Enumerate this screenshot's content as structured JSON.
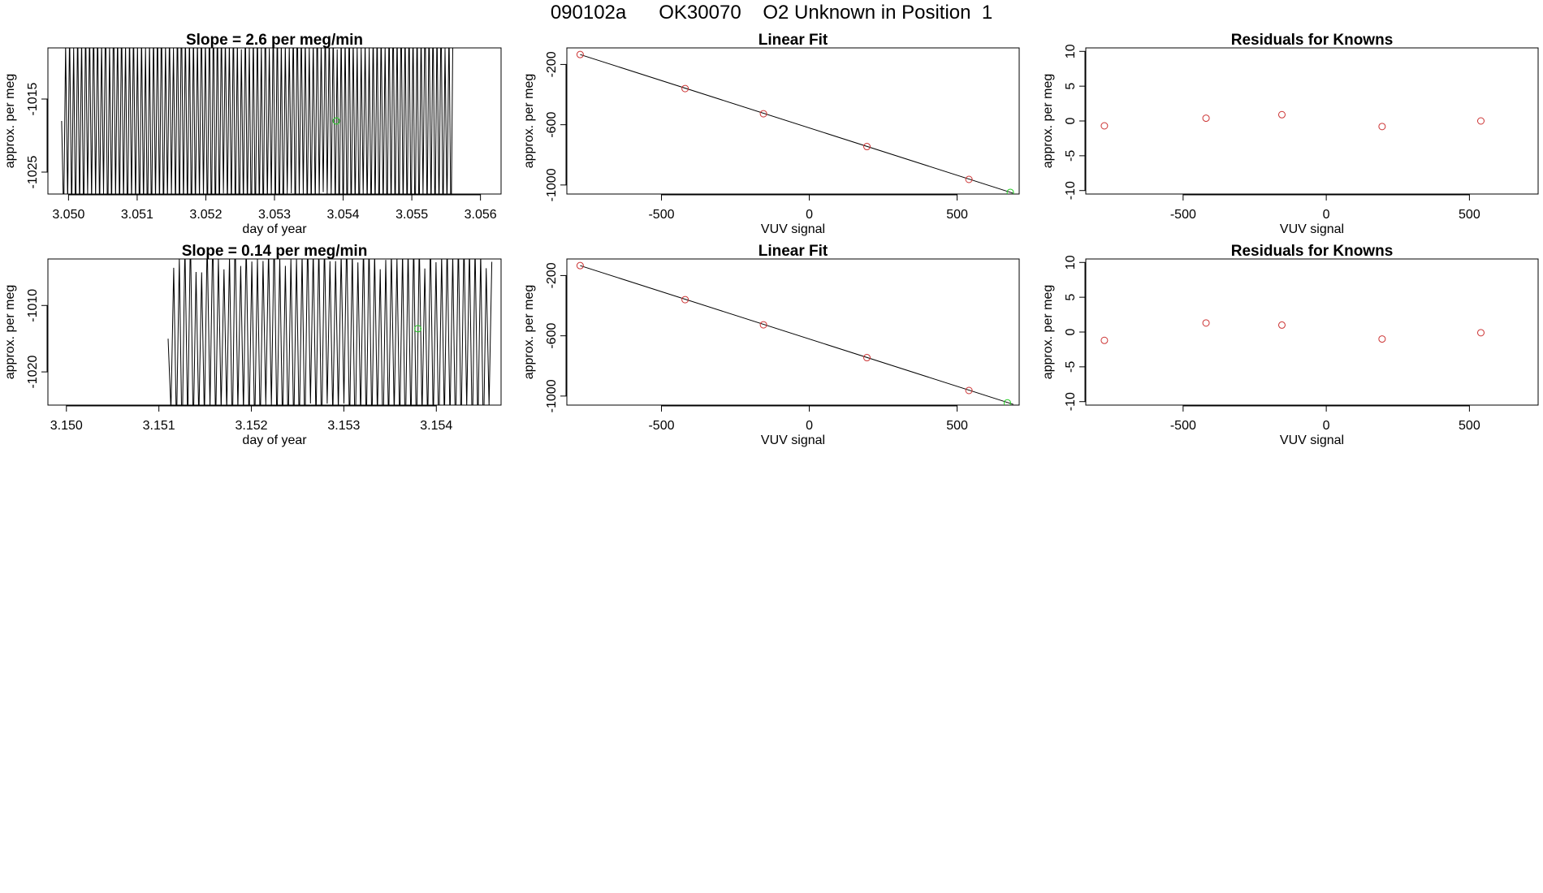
{
  "header": {
    "title": "090102a      OK30070    O2 Unknown in Position  1"
  },
  "chart_data": [
    {
      "id": "p1",
      "type": "line",
      "title": "Slope =  2.6  per meg/min",
      "xlabel": "day of year",
      "ylabel": "approx. per meg",
      "xlim": [
        3.0497,
        3.0563
      ],
      "ylim": [
        -1028,
        -1008
      ],
      "xticks": [
        "3.050",
        "3.051",
        "3.052",
        "3.053",
        "3.054",
        "3.055",
        "3.056"
      ],
      "yticks": [
        "-1015",
        "-1025"
      ],
      "yticks_values": [
        -1015,
        -1025
      ],
      "xticks_values": [
        3.05,
        3.051,
        3.052,
        3.053,
        3.054,
        3.055,
        3.056
      ],
      "series_color": "#000000",
      "trace_start": 3.0499,
      "trace_end": 3.0556,
      "trace_cycles": 98,
      "trace_center": -1018,
      "trace_amp": 13,
      "marker": {
        "x": 3.0539,
        "y": -1018,
        "color": "#22cc22"
      }
    },
    {
      "id": "p2",
      "type": "scatter",
      "title": "Linear Fit",
      "xlabel": "VUV signal",
      "ylabel": "approx. per meg",
      "xlim": [
        -820,
        710
      ],
      "ylim": [
        -1060,
        -90
      ],
      "xticks": [
        "-500",
        "0",
        "500"
      ],
      "xticks_values": [
        -500,
        0,
        500
      ],
      "yticks": [
        "-200",
        "-600",
        "-1000"
      ],
      "yticks_values": [
        -200,
        -600,
        -1000
      ],
      "points": [
        {
          "x": -775,
          "y": -134,
          "color": "#cc3333"
        },
        {
          "x": -420,
          "y": -360,
          "color": "#cc3333"
        },
        {
          "x": -155,
          "y": -527,
          "color": "#cc3333"
        },
        {
          "x": 195,
          "y": -745,
          "color": "#cc3333"
        },
        {
          "x": 540,
          "y": -963,
          "color": "#cc3333"
        },
        {
          "x": 680,
          "y": -1049,
          "color": "#22cc22"
        }
      ],
      "fit_line": [
        [
          -775,
          -134
        ],
        [
          690,
          -1055
        ]
      ]
    },
    {
      "id": "p3",
      "type": "scatter",
      "title": "Residuals for Knowns",
      "xlabel": "VUV signal",
      "ylabel": "approx. per meg",
      "xlim": [
        -840,
        740
      ],
      "ylim": [
        -10.5,
        10.5
      ],
      "xticks": [
        "-500",
        "0",
        "500"
      ],
      "xticks_values": [
        -500,
        0,
        500
      ],
      "yticks": [
        "10",
        "5",
        "0",
        "-5",
        "-10"
      ],
      "yticks_values": [
        10,
        5,
        0,
        -5,
        -10
      ],
      "points": [
        {
          "x": -775,
          "y": -0.7,
          "color": "#cc3333"
        },
        {
          "x": -420,
          "y": 0.4,
          "color": "#cc3333"
        },
        {
          "x": -155,
          "y": 0.9,
          "color": "#cc3333"
        },
        {
          "x": 195,
          "y": -0.8,
          "color": "#cc3333"
        },
        {
          "x": 540,
          "y": 0.0,
          "color": "#cc3333"
        }
      ]
    },
    {
      "id": "p4",
      "type": "line",
      "title": "Slope =  0.14  per meg/min",
      "xlabel": "day of year",
      "ylabel": "approx. per meg",
      "xlim": [
        3.1498,
        3.1547
      ],
      "ylim": [
        -1025,
        -1003
      ],
      "xticks": [
        "3.150",
        "3.151",
        "3.152",
        "3.153",
        "3.154"
      ],
      "xticks_values": [
        3.15,
        3.151,
        3.152,
        3.153,
        3.154
      ],
      "yticks": [
        "-1010",
        "-1020"
      ],
      "yticks_values": [
        -1010,
        -1020
      ],
      "series_color": "#000000",
      "trace_start": 3.1511,
      "trace_end": 3.1546,
      "trace_cycles": 58,
      "trace_center": -1015,
      "trace_amp": 13,
      "marker": {
        "x": 3.1538,
        "y": -1013.5,
        "color": "#22cc22"
      }
    },
    {
      "id": "p5",
      "type": "scatter",
      "title": "Linear Fit",
      "xlabel": "VUV signal",
      "ylabel": "approx. per meg",
      "xlim": [
        -820,
        710
      ],
      "ylim": [
        -1060,
        -90
      ],
      "xticks": [
        "-500",
        "0",
        "500"
      ],
      "xticks_values": [
        -500,
        0,
        500
      ],
      "yticks": [
        "-200",
        "-600",
        "-1000"
      ],
      "yticks_values": [
        -200,
        -600,
        -1000
      ],
      "points": [
        {
          "x": -775,
          "y": -134,
          "color": "#cc3333"
        },
        {
          "x": -420,
          "y": -360,
          "color": "#cc3333"
        },
        {
          "x": -155,
          "y": -527,
          "color": "#cc3333"
        },
        {
          "x": 195,
          "y": -745,
          "color": "#cc3333"
        },
        {
          "x": 540,
          "y": -963,
          "color": "#cc3333"
        },
        {
          "x": 670,
          "y": -1045,
          "color": "#22cc22"
        }
      ],
      "fit_line": [
        [
          -775,
          -134
        ],
        [
          690,
          -1055
        ]
      ]
    },
    {
      "id": "p6",
      "type": "scatter",
      "title": "Residuals for Knowns",
      "xlabel": "VUV signal",
      "ylabel": "approx. per meg",
      "xlim": [
        -840,
        740
      ],
      "ylim": [
        -10.5,
        10.5
      ],
      "xticks": [
        "-500",
        "0",
        "500"
      ],
      "xticks_values": [
        -500,
        0,
        500
      ],
      "yticks": [
        "10",
        "5",
        "0",
        "-5",
        "-10"
      ],
      "yticks_values": [
        10,
        5,
        0,
        -5,
        -10
      ],
      "points": [
        {
          "x": -775,
          "y": -1.2,
          "color": "#cc3333"
        },
        {
          "x": -420,
          "y": 1.3,
          "color": "#cc3333"
        },
        {
          "x": -155,
          "y": 1.0,
          "color": "#cc3333"
        },
        {
          "x": 195,
          "y": -1.0,
          "color": "#cc3333"
        },
        {
          "x": 540,
          "y": -0.1,
          "color": "#cc3333"
        }
      ]
    }
  ]
}
